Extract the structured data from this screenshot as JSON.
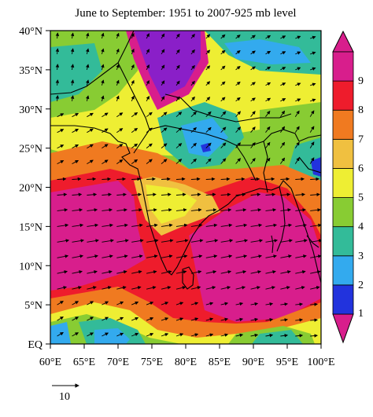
{
  "title": "June to September: 1951 to 2007-925 mb level",
  "map": {
    "lat_range": [
      0,
      40
    ],
    "lon_range": [
      60,
      100
    ],
    "lat_ticks": [
      {
        "value": 40,
        "label": "40°N"
      },
      {
        "value": 35,
        "label": "35°N"
      },
      {
        "value": 30,
        "label": "30°N"
      },
      {
        "value": 25,
        "label": "25°N"
      },
      {
        "value": 20,
        "label": "20°N"
      },
      {
        "value": 15,
        "label": "15°N"
      },
      {
        "value": 10,
        "label": "10°N"
      },
      {
        "value": 5,
        "label": "5°N"
      },
      {
        "value": 0,
        "label": "EQ"
      }
    ],
    "lon_ticks": [
      {
        "value": 60,
        "label": "60°E"
      },
      {
        "value": 65,
        "label": "65°E"
      },
      {
        "value": 70,
        "label": "70°E"
      },
      {
        "value": 75,
        "label": "75°E"
      },
      {
        "value": 80,
        "label": "80°E"
      },
      {
        "value": 85,
        "label": "85°E"
      },
      {
        "value": 90,
        "label": "90°E"
      },
      {
        "value": 95,
        "label": "95°E"
      },
      {
        "value": 100,
        "label": "100°E"
      }
    ]
  },
  "colorbar": {
    "levels": [
      {
        "label": "1",
        "color": "#2233dd"
      },
      {
        "label": "2",
        "color": "#33aaee"
      },
      {
        "label": "3",
        "color": "#33bb99"
      },
      {
        "label": "4",
        "color": "#88cc33"
      },
      {
        "label": "5",
        "color": "#eeee33"
      },
      {
        "label": "6",
        "color": "#f0c040"
      },
      {
        "label": "7",
        "color": "#f07a20"
      },
      {
        "label": "8",
        "color": "#ee1c2c"
      },
      {
        "label": "9",
        "color": "#d81e8c"
      }
    ],
    "lower_extension_color": "#d81e8c",
    "upper_extension_color": "#d81e8c"
  },
  "reference_vector": {
    "label": "10"
  },
  "colors": {
    "land_outline": "#000000",
    "wind_vector": "#000000",
    "purple_core": "#8a1fc8"
  }
}
